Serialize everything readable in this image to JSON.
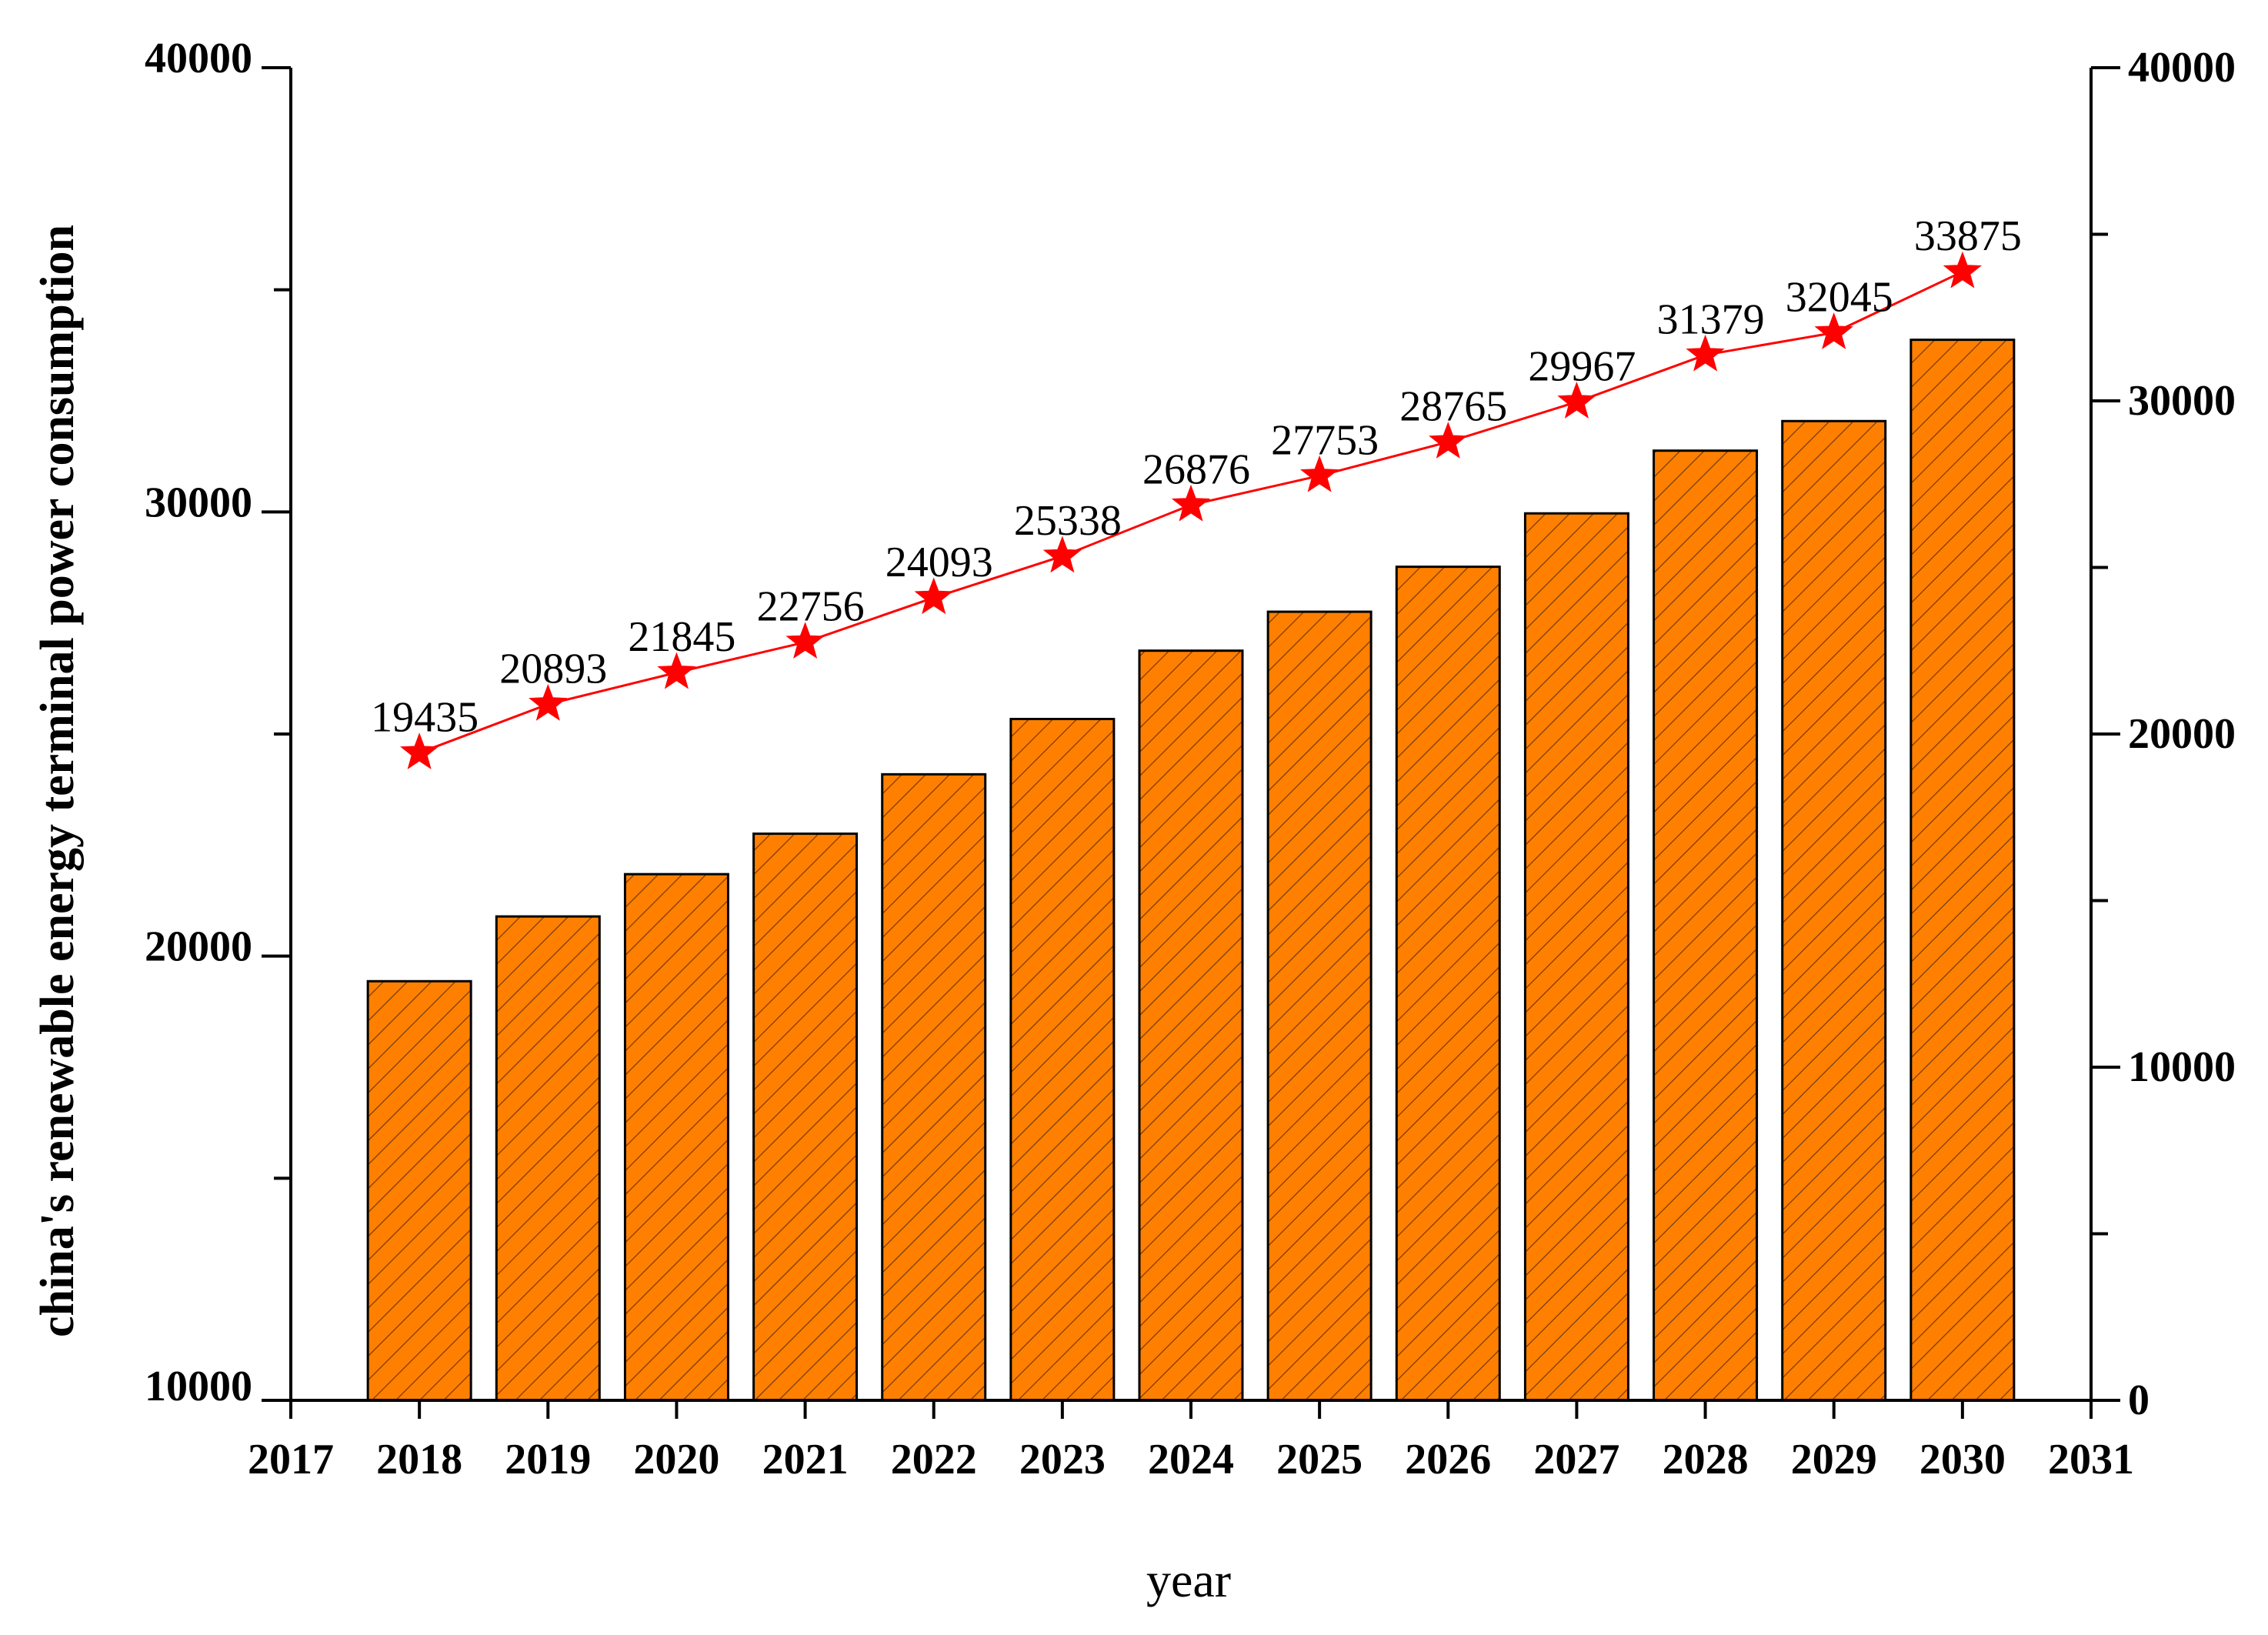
{
  "chart_data": {
    "type": "bar",
    "title": "",
    "xlabel": "year",
    "ylabel": "china's renewable energy terminal power consumption",
    "categories": [
      "2018",
      "2019",
      "2020",
      "2021",
      "2022",
      "2023",
      "2024",
      "2025",
      "2026",
      "2027",
      "2028",
      "2029",
      "2030"
    ],
    "x_ticks": [
      "2017",
      "2018",
      "2019",
      "2020",
      "2021",
      "2022",
      "2023",
      "2024",
      "2025",
      "2026",
      "2027",
      "2028",
      "2029",
      "2030",
      "2031"
    ],
    "series": [
      {
        "name": "bars",
        "type": "bar",
        "axis": "left",
        "values": [
          19435,
          20893,
          21845,
          22756,
          24093,
          25338,
          26876,
          27753,
          28765,
          29967,
          31379,
          32045,
          33875
        ]
      },
      {
        "name": "line",
        "type": "line",
        "axis": "right",
        "marker": "star",
        "values": [
          19435,
          20893,
          21845,
          22756,
          24093,
          25338,
          26876,
          27753,
          28765,
          29967,
          31379,
          32045,
          33875
        ]
      }
    ],
    "left_axis": {
      "ylim": [
        10000,
        40000
      ],
      "ticks": [
        "10000",
        "20000",
        "30000",
        "40000"
      ]
    },
    "right_axis": {
      "ylim": [
        0,
        40000
      ],
      "ticks": [
        "0",
        "10000",
        "20000",
        "30000",
        "40000"
      ]
    },
    "grid": false
  },
  "colors": {
    "bar_fill": "#ff8000",
    "bar_stroke": "#000000",
    "hatch": "#7a3a00",
    "line": "#ff0000",
    "star": "#ff0000",
    "axis": "#000000"
  }
}
